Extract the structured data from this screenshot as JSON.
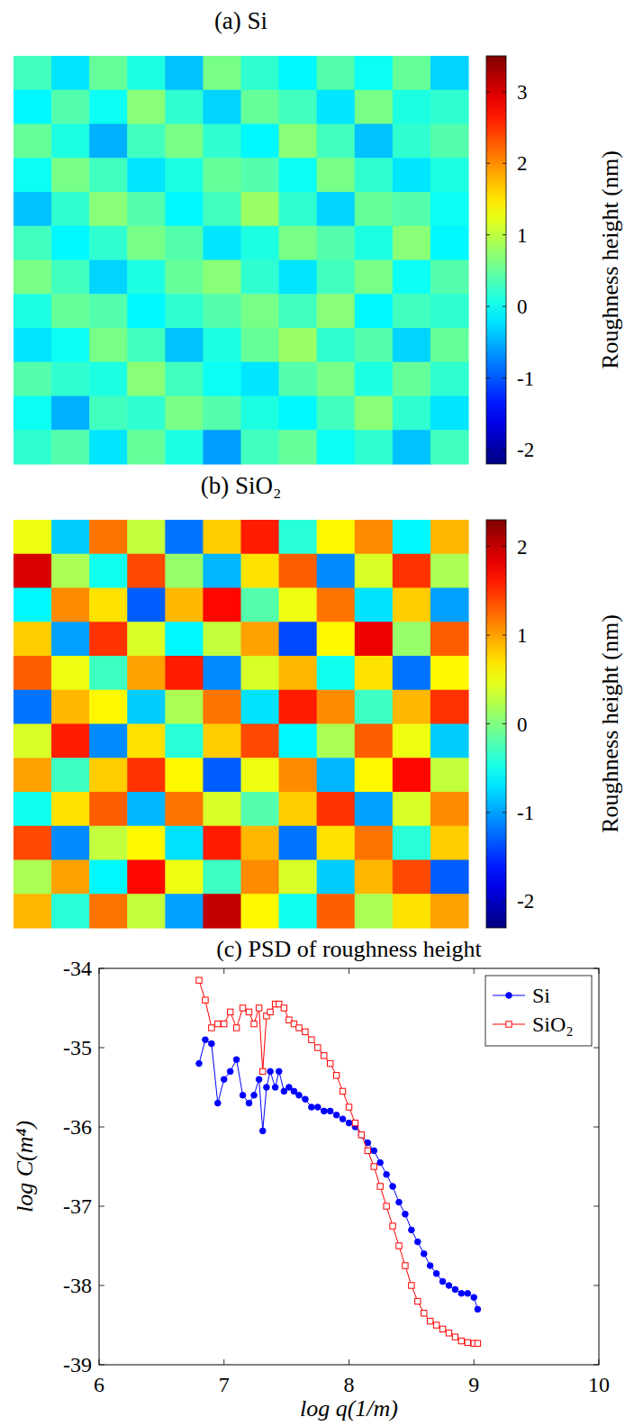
{
  "chart_data": [
    {
      "type": "heatmap",
      "title": "(a) Si",
      "colorbar_label": "Roughness height (nm)",
      "color_range": [
        -2.2,
        3.5
      ],
      "color_ticks": [
        -2,
        -1,
        0,
        1,
        2,
        3
      ],
      "cells": [
        [
          0.3,
          -0.2,
          0.5,
          0.1,
          -0.4,
          0.6,
          0.2,
          -0.1,
          0.4,
          0.0,
          0.5,
          -0.3
        ],
        [
          -0.1,
          0.4,
          0.0,
          0.7,
          0.2,
          -0.3,
          0.5,
          0.3,
          -0.2,
          0.6,
          0.1,
          0.2
        ],
        [
          0.5,
          0.1,
          -0.5,
          0.3,
          0.6,
          0.2,
          -0.1,
          0.7,
          0.3,
          -0.4,
          0.2,
          0.4
        ],
        [
          0.0,
          0.6,
          0.3,
          -0.2,
          0.1,
          0.5,
          0.4,
          0.0,
          0.6,
          0.2,
          -0.2,
          0.1
        ],
        [
          -0.4,
          0.2,
          0.7,
          0.4,
          -0.1,
          0.3,
          0.8,
          0.2,
          -0.3,
          0.5,
          0.4,
          0.0
        ],
        [
          0.3,
          -0.1,
          0.2,
          0.6,
          0.4,
          -0.2,
          0.1,
          0.6,
          0.4,
          0.1,
          0.7,
          -0.1
        ],
        [
          0.6,
          0.3,
          -0.3,
          0.1,
          0.5,
          0.7,
          0.2,
          -0.2,
          0.3,
          0.6,
          0.0,
          0.4
        ],
        [
          0.1,
          0.5,
          0.4,
          -0.1,
          0.2,
          0.4,
          0.6,
          0.3,
          0.7,
          -0.1,
          0.3,
          0.2
        ],
        [
          -0.2,
          0.0,
          0.6,
          0.3,
          -0.4,
          0.1,
          0.5,
          0.8,
          0.2,
          0.4,
          -0.3,
          0.5
        ],
        [
          0.4,
          0.2,
          0.1,
          0.7,
          0.3,
          0.0,
          -0.2,
          0.4,
          0.6,
          0.1,
          0.5,
          0.2
        ],
        [
          0.0,
          -0.5,
          0.3,
          0.2,
          0.6,
          0.4,
          0.1,
          -0.1,
          0.3,
          0.7,
          0.2,
          -0.2
        ],
        [
          0.2,
          0.4,
          -0.2,
          0.5,
          0.1,
          -0.6,
          0.3,
          0.5,
          0.0,
          0.2,
          -0.4,
          0.3
        ]
      ]
    },
    {
      "type": "heatmap",
      "title": "(b) SiO₂",
      "colorbar_label": "Roughness height (nm)",
      "color_range": [
        -2.3,
        2.3
      ],
      "color_ticks": [
        -2,
        -1,
        0,
        1,
        2
      ],
      "cells": [
        [
          0.5,
          -0.8,
          1.2,
          0.3,
          -1.2,
          0.8,
          1.6,
          -0.4,
          0.6,
          1.1,
          -0.6,
          0.9
        ],
        [
          1.9,
          0.2,
          -0.5,
          1.4,
          0.1,
          -0.9,
          0.7,
          1.3,
          -1.1,
          0.4,
          1.5,
          0.2
        ],
        [
          -0.6,
          1.1,
          0.7,
          -1.3,
          0.9,
          1.7,
          -0.2,
          0.5,
          1.2,
          -0.7,
          0.8,
          -1.0
        ],
        [
          0.8,
          -1.0,
          1.5,
          0.4,
          -0.6,
          0.3,
          1.0,
          -1.4,
          0.6,
          1.8,
          0.1,
          1.3
        ],
        [
          1.3,
          0.5,
          -0.3,
          1.0,
          1.6,
          -1.1,
          0.4,
          0.9,
          -0.5,
          0.7,
          -1.2,
          0.6
        ],
        [
          -1.2,
          0.9,
          0.6,
          -0.8,
          0.2,
          1.2,
          -0.7,
          1.6,
          1.1,
          -0.3,
          0.9,
          1.5
        ],
        [
          0.4,
          1.6,
          -1.1,
          0.7,
          -0.4,
          0.8,
          1.4,
          -0.6,
          0.2,
          1.3,
          0.5,
          -0.8
        ],
        [
          1.0,
          -0.3,
          0.8,
          1.5,
          0.6,
          -1.3,
          0.5,
          1.1,
          -0.9,
          0.6,
          1.7,
          0.3
        ],
        [
          -0.5,
          0.7,
          1.3,
          -0.9,
          1.2,
          0.4,
          -0.2,
          0.8,
          1.5,
          -1.0,
          0.4,
          1.1
        ],
        [
          1.4,
          -1.1,
          0.3,
          0.6,
          -0.7,
          1.6,
          0.9,
          -1.2,
          0.7,
          1.2,
          -0.4,
          0.8
        ],
        [
          0.2,
          1.0,
          -0.6,
          1.7,
          0.5,
          -0.3,
          1.1,
          0.4,
          -0.8,
          0.9,
          1.4,
          -1.3
        ],
        [
          0.9,
          -0.4,
          1.2,
          0.3,
          -1.0,
          2.0,
          0.6,
          -0.5,
          1.3,
          0.2,
          0.7,
          1.0
        ]
      ]
    },
    {
      "type": "line",
      "title": "(c) PSD of roughness height",
      "x_label": "log q(1/m)",
      "y_label": "log C(m⁴)",
      "xlim": [
        6,
        10
      ],
      "xticks": [
        6,
        7,
        8,
        9,
        10
      ],
      "ylim": [
        -39,
        -34
      ],
      "yticks": [
        -39,
        -38,
        -37,
        -36,
        -35,
        -34
      ],
      "legend": "upper right",
      "x": [
        6.8,
        6.85,
        6.9,
        6.95,
        7.0,
        7.05,
        7.1,
        7.15,
        7.2,
        7.24,
        7.28,
        7.31,
        7.34,
        7.37,
        7.41,
        7.44,
        7.48,
        7.52,
        7.56,
        7.6,
        7.65,
        7.7,
        7.75,
        7.8,
        7.85,
        7.9,
        7.95,
        8.0,
        8.05,
        8.1,
        8.15,
        8.2,
        8.25,
        8.3,
        8.35,
        8.4,
        8.45,
        8.5,
        8.55,
        8.6,
        8.65,
        8.7,
        8.75,
        8.8,
        8.85,
        8.9,
        8.95,
        9.0,
        9.03
      ],
      "series": [
        {
          "name": "Si",
          "color": "#0000ff",
          "marker": "circle",
          "line_style": "solid",
          "values": [
            -35.2,
            -34.9,
            -34.95,
            -35.7,
            -35.4,
            -35.3,
            -35.15,
            -35.6,
            -35.7,
            -35.6,
            -35.4,
            -36.05,
            -35.5,
            -35.3,
            -35.5,
            -35.3,
            -35.55,
            -35.5,
            -35.55,
            -35.6,
            -35.65,
            -35.75,
            -35.75,
            -35.8,
            -35.8,
            -35.85,
            -35.9,
            -35.95,
            -36.0,
            -36.1,
            -36.2,
            -36.3,
            -36.45,
            -36.6,
            -36.75,
            -36.95,
            -37.1,
            -37.3,
            -37.45,
            -37.6,
            -37.75,
            -37.85,
            -37.95,
            -38.0,
            -38.05,
            -38.1,
            -38.1,
            -38.15,
            -38.3
          ]
        },
        {
          "name": "SiO₂",
          "color": "#ff0000",
          "marker": "square",
          "line_style": "solid",
          "values": [
            -34.15,
            -34.4,
            -34.75,
            -34.7,
            -34.7,
            -34.55,
            -34.75,
            -34.5,
            -34.55,
            -34.7,
            -34.5,
            -35.3,
            -34.6,
            -34.55,
            -34.45,
            -34.45,
            -34.5,
            -34.65,
            -34.7,
            -34.75,
            -34.8,
            -34.9,
            -35.0,
            -35.1,
            -35.2,
            -35.35,
            -35.55,
            -35.75,
            -35.95,
            -36.1,
            -36.3,
            -36.5,
            -36.75,
            -37.0,
            -37.25,
            -37.5,
            -37.75,
            -38.0,
            -38.2,
            -38.35,
            -38.45,
            -38.5,
            -38.55,
            -38.6,
            -38.65,
            -38.7,
            -38.72,
            -38.73,
            -38.73
          ]
        }
      ]
    }
  ]
}
